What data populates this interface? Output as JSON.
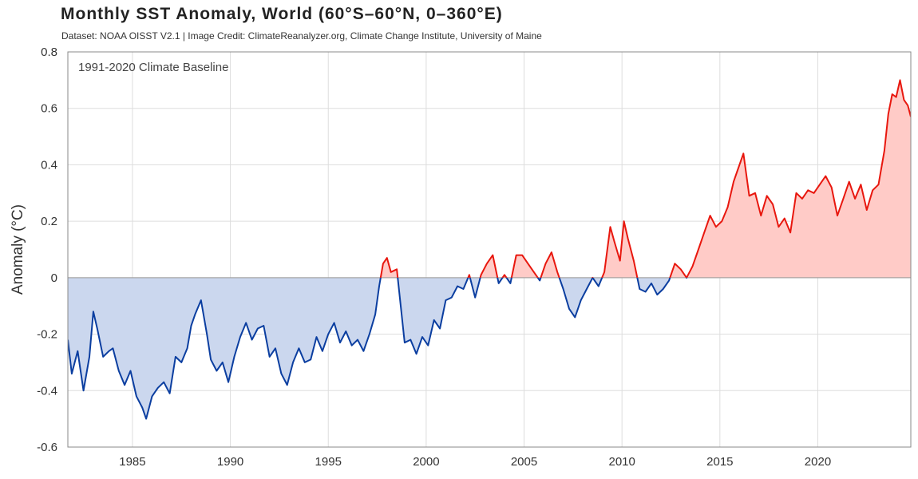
{
  "chart_data": {
    "type": "area",
    "title": "Monthly SST Anomaly, World (60°S–60°N, 0–360°E)",
    "subtitle": "Dataset: NOAA OISST V2.1 | Image Credit: ClimateReanalyzer.org, Climate Change Institute, University of Maine",
    "annotation": "1991-2020 Climate Baseline",
    "ylabel": "Anomaly (°C)",
    "xlabel": "",
    "xlim": [
      1981.7,
      2024.75
    ],
    "ylim": [
      -0.6,
      0.8
    ],
    "xticks": [
      1985,
      1990,
      1995,
      2000,
      2005,
      2010,
      2015,
      2020
    ],
    "xtick_labels": [
      "1985",
      "1990",
      "1995",
      "2000",
      "2005",
      "2010",
      "2015",
      "2020"
    ],
    "yticks": [
      -0.6,
      -0.4,
      -0.2,
      0,
      0.2,
      0.4,
      0.6,
      0.8
    ],
    "ytick_labels": [
      "-0.6",
      "-0.4",
      "-0.2",
      "0",
      "0.2",
      "0.4",
      "0.6",
      "0.8"
    ],
    "grid": true,
    "colors": {
      "positive_line": "#e8170e",
      "positive_fill": "#ffcbc7",
      "negative_line": "#0b3ea0",
      "negative_fill": "#cbd7ee",
      "grid": "#dddddd",
      "axis": "#888888"
    },
    "series": [
      {
        "name": "Monthly SST Anomaly",
        "x": [
          1981.7,
          1981.9,
          1982.2,
          1982.5,
          1982.8,
          1983.0,
          1983.2,
          1983.5,
          1983.8,
          1984.0,
          1984.3,
          1984.6,
          1984.9,
          1985.2,
          1985.5,
          1985.7,
          1986.0,
          1986.3,
          1986.6,
          1986.9,
          1987.2,
          1987.5,
          1987.8,
          1988.0,
          1988.2,
          1988.5,
          1988.8,
          1989.0,
          1989.3,
          1989.6,
          1989.9,
          1990.2,
          1990.5,
          1990.8,
          1991.1,
          1991.4,
          1991.7,
          1992.0,
          1992.3,
          1992.6,
          1992.9,
          1993.2,
          1993.5,
          1993.8,
          1994.1,
          1994.4,
          1994.7,
          1995.0,
          1995.3,
          1995.6,
          1995.9,
          1996.2,
          1996.5,
          1996.8,
          1997.1,
          1997.4,
          1997.6,
          1997.8,
          1998.0,
          1998.2,
          1998.5,
          1998.7,
          1998.9,
          1999.2,
          1999.5,
          1999.8,
          2000.1,
          2000.4,
          2000.7,
          2001.0,
          2001.3,
          2001.6,
          2001.9,
          2002.2,
          2002.5,
          2002.8,
          2003.1,
          2003.4,
          2003.7,
          2004.0,
          2004.3,
          2004.6,
          2004.9,
          2005.2,
          2005.5,
          2005.8,
          2006.1,
          2006.4,
          2006.7,
          2007.0,
          2007.3,
          2007.6,
          2007.9,
          2008.2,
          2008.5,
          2008.8,
          2009.1,
          2009.4,
          2009.6,
          2009.9,
          2010.1,
          2010.3,
          2010.6,
          2010.9,
          2011.2,
          2011.5,
          2011.8,
          2012.1,
          2012.4,
          2012.7,
          2013.0,
          2013.3,
          2013.6,
          2013.9,
          2014.2,
          2014.5,
          2014.8,
          2015.1,
          2015.4,
          2015.7,
          2015.9,
          2016.2,
          2016.5,
          2016.8,
          2017.1,
          2017.4,
          2017.7,
          2018.0,
          2018.3,
          2018.6,
          2018.9,
          2019.2,
          2019.5,
          2019.8,
          2020.1,
          2020.4,
          2020.7,
          2021.0,
          2021.3,
          2021.6,
          2021.9,
          2022.2,
          2022.5,
          2022.8,
          2023.1,
          2023.4,
          2023.6,
          2023.8,
          2024.0,
          2024.2,
          2024.4,
          2024.6,
          2024.75
        ],
        "values": [
          -0.22,
          -0.34,
          -0.26,
          -0.4,
          -0.28,
          -0.12,
          -0.18,
          -0.28,
          -0.26,
          -0.25,
          -0.33,
          -0.38,
          -0.33,
          -0.42,
          -0.46,
          -0.5,
          -0.42,
          -0.39,
          -0.37,
          -0.41,
          -0.28,
          -0.3,
          -0.25,
          -0.17,
          -0.13,
          -0.08,
          -0.2,
          -0.29,
          -0.33,
          -0.3,
          -0.37,
          -0.28,
          -0.21,
          -0.16,
          -0.22,
          -0.18,
          -0.17,
          -0.28,
          -0.25,
          -0.34,
          -0.38,
          -0.3,
          -0.25,
          -0.3,
          -0.29,
          -0.21,
          -0.26,
          -0.2,
          -0.16,
          -0.23,
          -0.19,
          -0.24,
          -0.22,
          -0.26,
          -0.2,
          -0.13,
          -0.03,
          0.05,
          0.07,
          0.02,
          0.03,
          -0.1,
          -0.23,
          -0.22,
          -0.27,
          -0.21,
          -0.24,
          -0.15,
          -0.18,
          -0.08,
          -0.07,
          -0.03,
          -0.04,
          0.01,
          -0.07,
          0.01,
          0.05,
          0.08,
          -0.02,
          0.01,
          -0.02,
          0.08,
          0.08,
          0.05,
          0.02,
          -0.01,
          0.05,
          0.09,
          0.02,
          -0.04,
          -0.11,
          -0.14,
          -0.08,
          -0.04,
          0.0,
          -0.03,
          0.02,
          0.18,
          0.13,
          0.06,
          0.2,
          0.14,
          0.06,
          -0.04,
          -0.05,
          -0.02,
          -0.06,
          -0.04,
          -0.01,
          0.05,
          0.03,
          0.0,
          0.04,
          0.1,
          0.16,
          0.22,
          0.18,
          0.2,
          0.25,
          0.34,
          0.38,
          0.44,
          0.29,
          0.3,
          0.22,
          0.29,
          0.26,
          0.18,
          0.21,
          0.16,
          0.3,
          0.28,
          0.31,
          0.3,
          0.33,
          0.36,
          0.32,
          0.22,
          0.28,
          0.34,
          0.28,
          0.33,
          0.24,
          0.31,
          0.33,
          0.45,
          0.58,
          0.65,
          0.64,
          0.7,
          0.63,
          0.61,
          0.57
        ]
      }
    ]
  }
}
